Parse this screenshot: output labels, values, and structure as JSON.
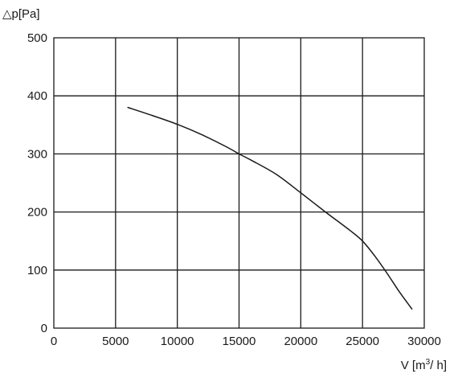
{
  "chart_data": {
    "type": "line",
    "ylabel": "△p[Pa]",
    "xlabel_prefix": "V [m",
    "xlabel_sup": "3",
    "xlabel_suffix": "/ h]",
    "xlim": [
      0,
      30000
    ],
    "ylim": [
      0,
      500
    ],
    "x_ticks": [
      0,
      5000,
      10000,
      15000,
      20000,
      25000,
      30000
    ],
    "x_tick_labels": [
      "0",
      "5000",
      "10000",
      "15000",
      "20000",
      "25000",
      "30000"
    ],
    "y_ticks": [
      0,
      100,
      200,
      300,
      400,
      500
    ],
    "y_tick_labels": [
      "0",
      "100",
      "200",
      "300",
      "400",
      "500"
    ],
    "grid": true,
    "series": [
      {
        "x": [
          6000,
          8000,
          10000,
          12000,
          14000,
          15000,
          16000,
          18000,
          20000,
          22000,
          24000,
          25000,
          26000,
          27000,
          28000,
          29000
        ],
        "y": [
          380,
          366,
          351,
          333,
          312,
          300,
          289,
          265,
          233,
          200,
          168,
          150,
          124,
          94,
          62,
          33
        ]
      }
    ]
  }
}
